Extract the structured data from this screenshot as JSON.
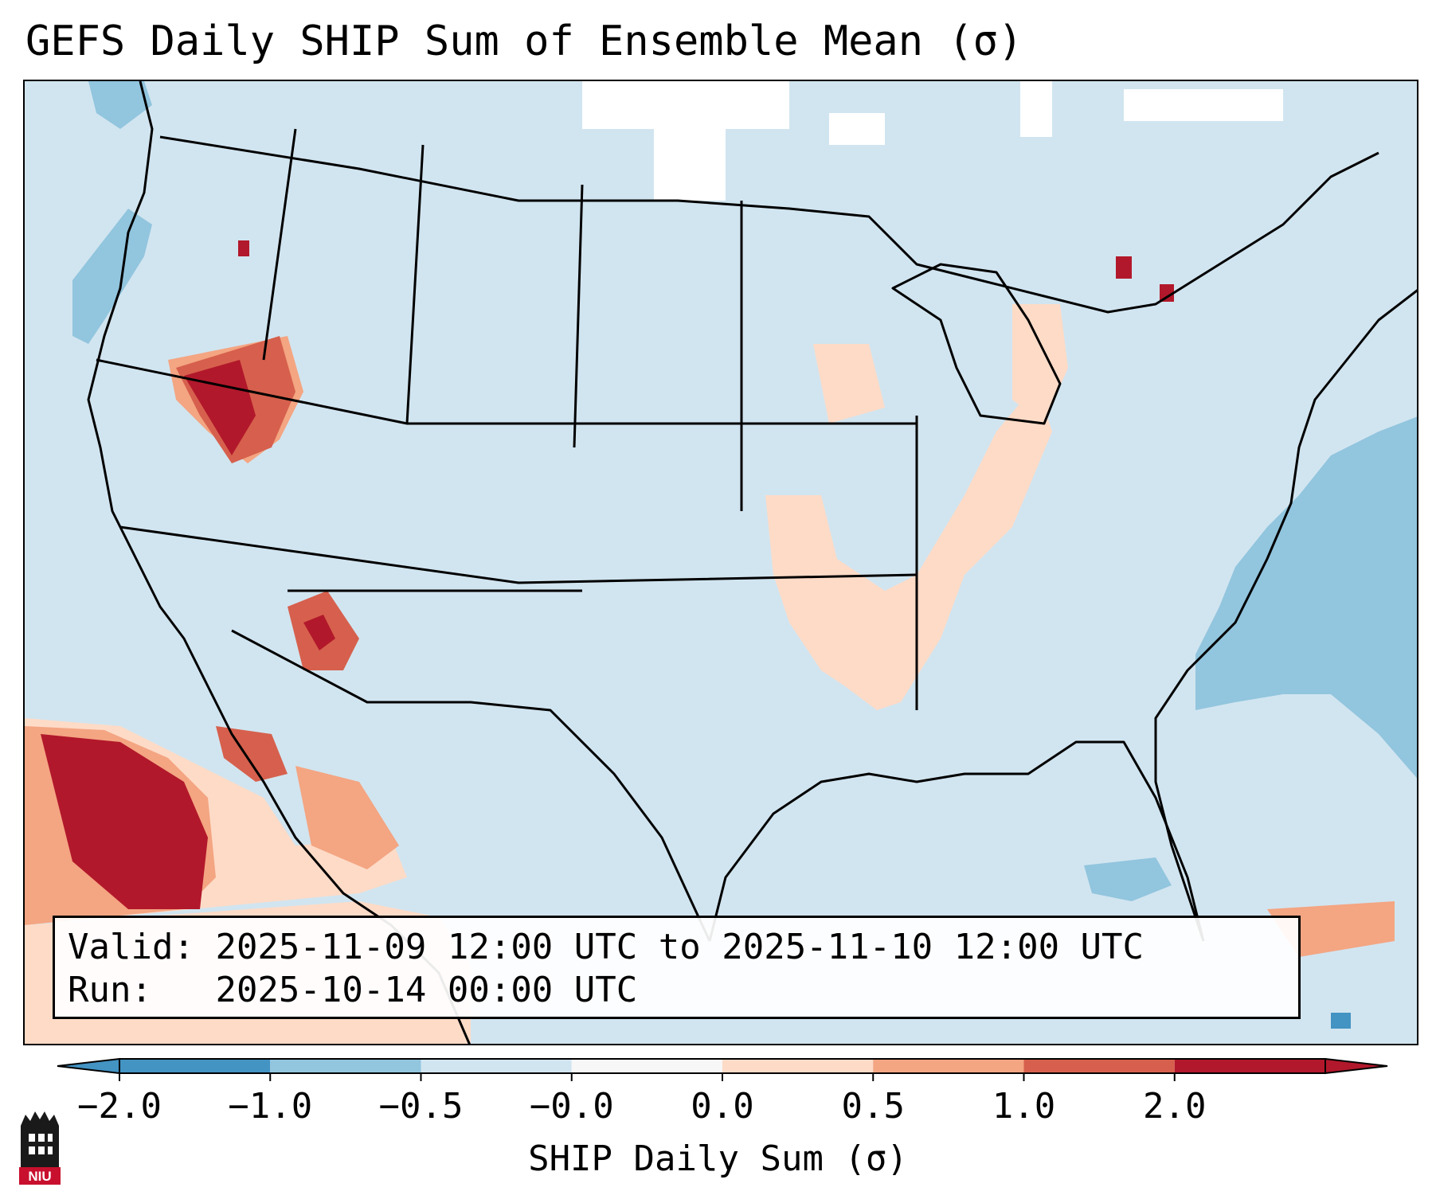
{
  "title": "GEFS Daily SHIP Sum of Ensemble Mean (σ)",
  "info": {
    "valid_label": "Valid:",
    "valid_value": "2025-11-09 12:00 UTC to 2025-11-10 12:00 UTC",
    "run_label": "Run:",
    "run_value": "2025-10-14 00:00 UTC"
  },
  "colorbar": {
    "label": "SHIP Daily Sum (σ)",
    "ticks": [
      "−2.0",
      "−1.0",
      "−0.5",
      "−0.0",
      "0.0",
      "0.5",
      "1.0",
      "2.0"
    ],
    "colors": [
      "#4393c3",
      "#92c5de",
      "#d1e5f0",
      "#f7f7f7",
      "#fddbc7",
      "#f4a582",
      "#d6604d",
      "#b2182b"
    ]
  },
  "logo": {
    "text": "NIU",
    "colors": [
      "#1a1a1a",
      "#c8102e"
    ]
  },
  "map": {
    "background_color": "#d1e5f0",
    "legend_categories": {
      "very_low": "#4393c3",
      "low": "#92c5de",
      "near_neutral_negative": "#d1e5f0",
      "neutral": "#ffffff",
      "near_neutral_positive": "#fddbc7",
      "moderate": "#f4a582",
      "high": "#d6604d",
      "very_high": "#b2182b"
    }
  }
}
